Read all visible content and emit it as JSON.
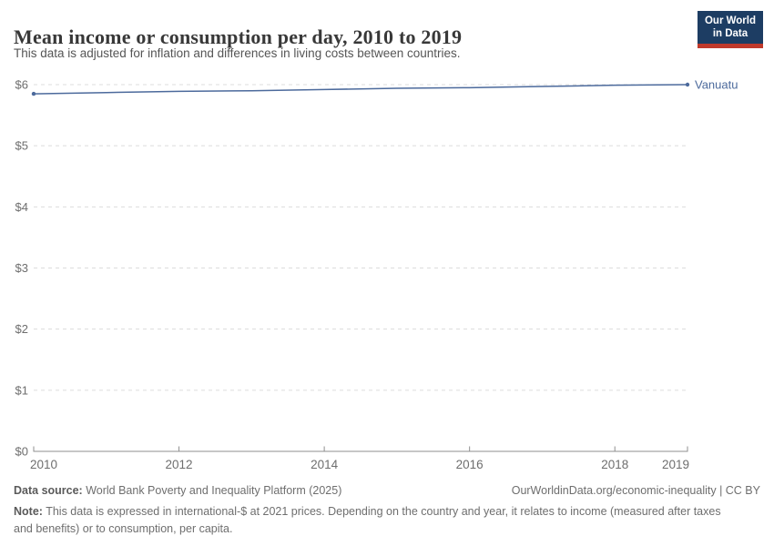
{
  "header": {
    "title": "Mean income or consumption per day, 2010 to 2019",
    "subtitle": "This data is adjusted for inflation and differences in living costs between countries.",
    "logo": {
      "line1": "Our World",
      "line2": "in Data",
      "bg_color": "#1d3d63",
      "accent_color": "#c0392b"
    }
  },
  "chart_data": {
    "type": "line",
    "title": "Mean income or consumption per day, 2010 to 2019",
    "subtitle": "This data is adjusted for inflation and differences in living costs between countries.",
    "x": [
      2010,
      2011,
      2012,
      2013,
      2014,
      2015,
      2016,
      2017,
      2018,
      2019
    ],
    "series": [
      {
        "name": "Vanuatu",
        "color": "#4c6a9c",
        "values": [
          5.85,
          5.87,
          5.89,
          5.9,
          5.92,
          5.94,
          5.95,
          5.97,
          5.99,
          6.0
        ]
      }
    ],
    "ylim": [
      0,
      6
    ],
    "yticks": [
      0,
      1,
      2,
      3,
      4,
      5,
      6
    ],
    "ytick_labels": [
      "$0",
      "$1",
      "$2",
      "$3",
      "$4",
      "$5",
      "$6"
    ],
    "xticks": [
      2010,
      2012,
      2014,
      2016,
      2018,
      2019
    ],
    "xlabel": "",
    "ylabel": "",
    "grid": "horizontal-dashed",
    "legend_position": "end-of-line",
    "axis_color": "#8f8f8f",
    "grid_color": "#dcdcdc",
    "tick_label_color": "#6e6e6e"
  },
  "footer": {
    "source_label": "Data source:",
    "source_text": " World Bank Poverty and Inequality Platform (2025)",
    "credit": "OurWorldinData.org/economic-inequality | CC BY",
    "note_label": "Note:",
    "note_text": " This data is expressed in international-$ at 2021 prices. Depending on the country and year, it relates to income (measured after taxes and benefits) or to consumption, per capita."
  }
}
